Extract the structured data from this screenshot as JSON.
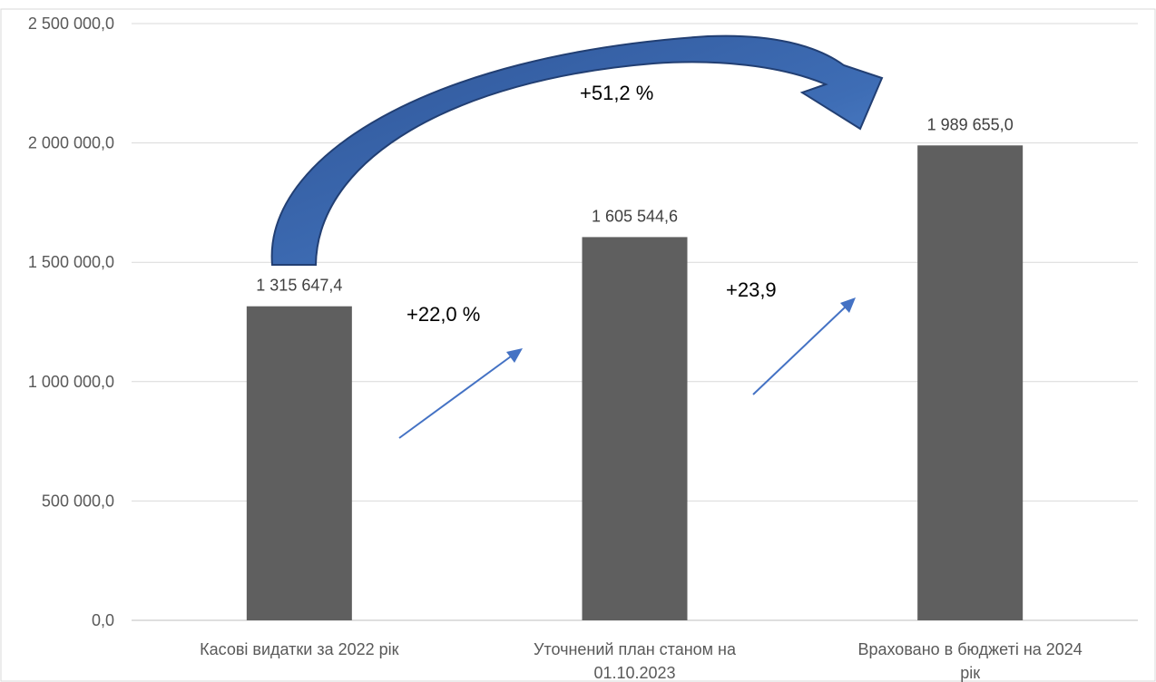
{
  "chart_data": {
    "type": "bar",
    "categories": [
      "Касові видатки за 2022 рік",
      "Уточнений план станом на 01.10.2023",
      "Враховано в бюджеті на 2024 рік"
    ],
    "values": [
      1315647.4,
      1605544.6,
      1989655.0
    ],
    "data_labels": [
      "1 315 647,4",
      "1 605 544,6",
      "1 989 655,0"
    ],
    "ylim": [
      0,
      2500000
    ],
    "yticks": [
      0,
      500000,
      1000000,
      1500000,
      2000000,
      2500000
    ],
    "ytick_labels": [
      "0,0",
      "500 000,0",
      "1 000 000,0",
      "1 500 000,0",
      "2 000 000,0",
      "2 500 000,0"
    ],
    "grid": true,
    "legend": "none",
    "bar_color": "#5f5f5f",
    "annotations": [
      {
        "text": "+22,0 %",
        "from_category": 0,
        "to_category": 1
      },
      {
        "text": "+23,9",
        "from_category": 1,
        "to_category": 2
      },
      {
        "text": "+51,2 %",
        "from_category": 0,
        "to_category": 2
      }
    ],
    "arrow_color": "#4472c4",
    "big_arrow_color": "#3a64a8"
  }
}
